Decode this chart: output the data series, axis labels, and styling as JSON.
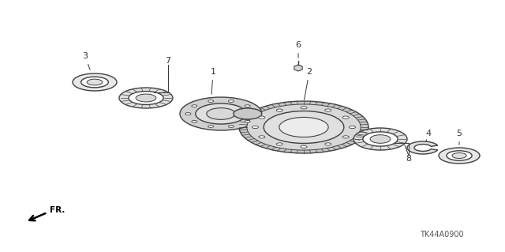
{
  "bg_color": "#ffffff",
  "line_color": "#404040",
  "title_code": "TK44A0900",
  "fr_label": "FR.",
  "fig_w": 6.4,
  "fig_h": 3.19,
  "xlim": [
    0,
    640
  ],
  "ylim": [
    0,
    319
  ]
}
